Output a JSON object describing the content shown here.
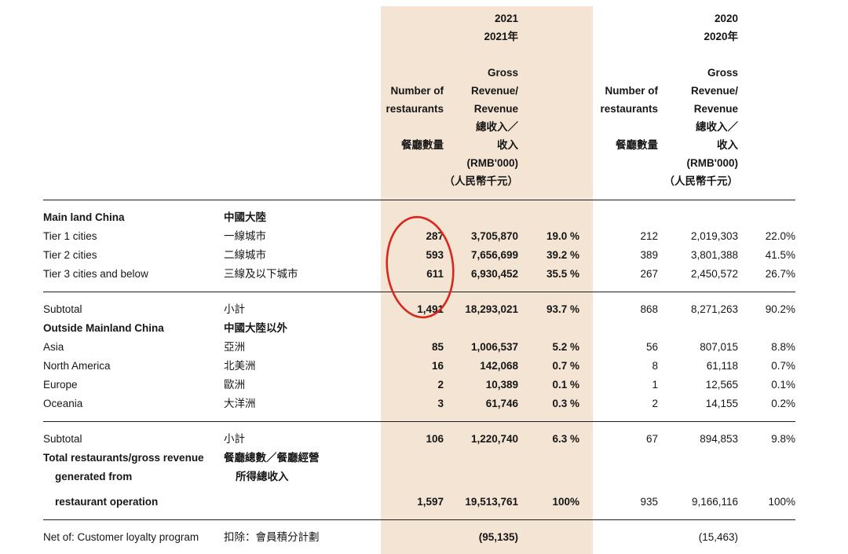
{
  "colors": {
    "highlight_band": "#f3e4d3",
    "circle_red": "#d8271d"
  },
  "header": {
    "y2021": {
      "year_en": "2021",
      "year_cn": "2021年",
      "num_en1": "Number of",
      "num_en2": "restaurants",
      "num_cn": "餐廳數量",
      "rev_en1": "Gross",
      "rev_en2": "Revenue/",
      "rev_en3": "Revenue",
      "rev_cn1": "總收入／",
      "rev_cn2": "收入",
      "rev_unit_en": "(RMB'000)",
      "rev_unit_cn": "（人民幣千元）"
    },
    "y2020": {
      "year_en": "2020",
      "year_cn": "2020年",
      "num_en1": "Number of",
      "num_en2": "restaurants",
      "num_cn": "餐廳數量",
      "rev_en1": "Gross",
      "rev_en2": "Revenue/",
      "rev_en3": "Revenue",
      "rev_cn1": "總收入／",
      "rev_cn2": "收入",
      "rev_unit_en": "(RMB'000)",
      "rev_unit_cn": "（人民幣千元）"
    }
  },
  "table": {
    "rows": [
      {
        "en": "Main land China",
        "cn": "中國大陸",
        "bold": true,
        "cells": [
          "",
          "",
          "",
          "",
          "",
          ""
        ]
      },
      {
        "en": "Tier 1 cities",
        "cn": "一線城市",
        "cells": [
          "287",
          "3,705,870",
          "19.0 %",
          "212",
          "2,019,303",
          "22.0%"
        ]
      },
      {
        "en": "Tier 2 cities",
        "cn": "二線城市",
        "cells": [
          "593",
          "7,656,699",
          "39.2 %",
          "389",
          "3,801,388",
          "41.5%"
        ]
      },
      {
        "en": "Tier 3 cities and below",
        "cn": "三線及以下城市",
        "cells": [
          "611",
          "6,930,452",
          "35.5 %",
          "267",
          "2,450,572",
          "26.7%"
        ],
        "divider_after": true
      },
      {
        "en": "Subtotal",
        "cn": "小計",
        "cells": [
          "1,491",
          "18,293,021",
          "93.7 %",
          "868",
          "8,271,263",
          "90.2%"
        ]
      },
      {
        "en": "Outside Mainland China",
        "cn": "中國大陸以外",
        "bold": true,
        "cells": [
          "",
          "",
          "",
          "",
          "",
          ""
        ]
      },
      {
        "en": "Asia",
        "cn": "亞洲",
        "cells": [
          "85",
          "1,006,537",
          "5.2 %",
          "56",
          "807,015",
          "8.8%"
        ]
      },
      {
        "en": "North America",
        "cn": "北美洲",
        "cells": [
          "16",
          "142,068",
          "0.7 %",
          "8",
          "61,118",
          "0.7%"
        ]
      },
      {
        "en": "Europe",
        "cn": "歐洲",
        "cells": [
          "2",
          "10,389",
          "0.1 %",
          "1",
          "12,565",
          "0.1%"
        ]
      },
      {
        "en": "Oceania",
        "cn": "大洋洲",
        "cells": [
          "3",
          "61,746",
          "0.3 %",
          "2",
          "14,155",
          "0.2%"
        ],
        "divider_after": true
      },
      {
        "en": "Subtotal",
        "cn": "小計",
        "cells": [
          "106",
          "1,220,740",
          "6.3 %",
          "67",
          "894,853",
          "9.8%"
        ]
      },
      {
        "en_lines": [
          "Total restaurants/gross revenue",
          "generated from",
          "restaurant operation"
        ],
        "cn_lines": [
          "餐廳總數／餐廳經營",
          "所得總收入"
        ],
        "bold": true,
        "cells": [
          "1,597",
          "19,513,761",
          "100%",
          "935",
          "9,166,116",
          "100%"
        ],
        "divider_after": true
      },
      {
        "en": "Net of: Customer loyalty program",
        "cn": "扣除：會員積分計劃",
        "cells": [
          "",
          "(95,135)",
          "",
          "",
          "(15,463)",
          ""
        ],
        "divider_after": true
      }
    ]
  }
}
